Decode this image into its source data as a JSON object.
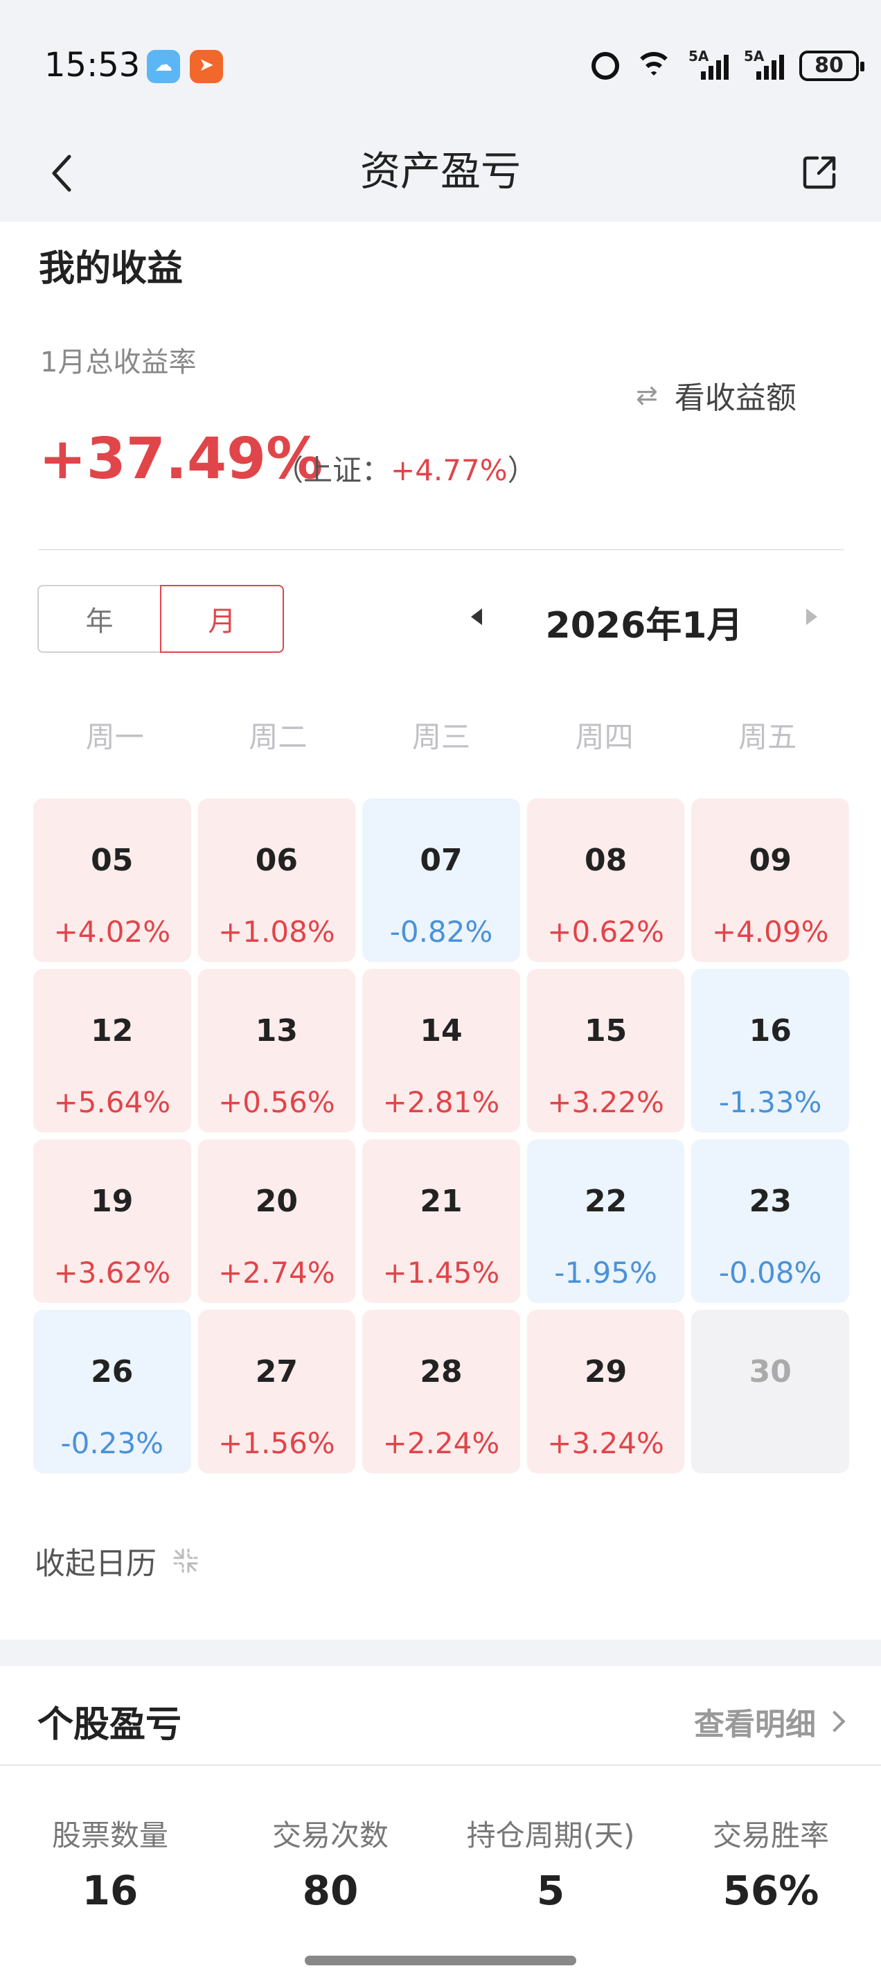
{
  "status_bar": {
    "time": "15:53",
    "signal1_label": "5A",
    "signal2_label": "5A",
    "battery": "80"
  },
  "nav": {
    "title": "资产盈亏"
  },
  "summary": {
    "section_title": "我的收益",
    "month_label": "1月总收益率",
    "toggle_label": "看收益额",
    "total_rate": "+37.49%",
    "bench_prefix": "（上证：",
    "bench_value": "+4.77%",
    "bench_suffix": "）"
  },
  "period": {
    "year_label": "年",
    "month_label": "月",
    "selected": "月",
    "current_month": "2026年1月"
  },
  "calendar": {
    "weekdays": [
      "周一",
      "周二",
      "周三",
      "周四",
      "周五"
    ],
    "days": [
      {
        "day": "05",
        "ret": "+4.02%",
        "dir": "up"
      },
      {
        "day": "06",
        "ret": "+1.08%",
        "dir": "up"
      },
      {
        "day": "07",
        "ret": "-0.82%",
        "dir": "down"
      },
      {
        "day": "08",
        "ret": "+0.62%",
        "dir": "up"
      },
      {
        "day": "09",
        "ret": "+4.09%",
        "dir": "up"
      },
      {
        "day": "12",
        "ret": "+5.64%",
        "dir": "up"
      },
      {
        "day": "13",
        "ret": "+0.56%",
        "dir": "up"
      },
      {
        "day": "14",
        "ret": "+2.81%",
        "dir": "up"
      },
      {
        "day": "15",
        "ret": "+3.22%",
        "dir": "up"
      },
      {
        "day": "16",
        "ret": "-1.33%",
        "dir": "down"
      },
      {
        "day": "19",
        "ret": "+3.62%",
        "dir": "up"
      },
      {
        "day": "20",
        "ret": "+2.74%",
        "dir": "up"
      },
      {
        "day": "21",
        "ret": "+1.45%",
        "dir": "up"
      },
      {
        "day": "22",
        "ret": "-1.95%",
        "dir": "down"
      },
      {
        "day": "23",
        "ret": "-0.08%",
        "dir": "down"
      },
      {
        "day": "26",
        "ret": "-0.23%",
        "dir": "down"
      },
      {
        "day": "27",
        "ret": "+1.56%",
        "dir": "up"
      },
      {
        "day": "28",
        "ret": "+2.24%",
        "dir": "up"
      },
      {
        "day": "29",
        "ret": "+3.24%",
        "dir": "up"
      },
      {
        "day": "30",
        "ret": "",
        "dir": "none"
      }
    ],
    "collapse_label": "收起日历"
  },
  "stocks": {
    "title": "个股盈亏",
    "detail_label": "查看明细",
    "stats": [
      {
        "label": "股票数量",
        "value": "16"
      },
      {
        "label": "交易次数",
        "value": "80"
      },
      {
        "label": "持仓周期(天)",
        "value": "5"
      },
      {
        "label": "交易胜率",
        "value": "56%"
      }
    ]
  },
  "colors": {
    "up": "#e0454a",
    "down": "#4a92d8",
    "background": "#f2f3f7"
  },
  "icons": [
    "back-icon",
    "share-icon",
    "swap-icon",
    "collapse-icon",
    "chevron-right-icon",
    "alarm-icon",
    "wifi-icon",
    "signal-icon",
    "battery-icon"
  ]
}
